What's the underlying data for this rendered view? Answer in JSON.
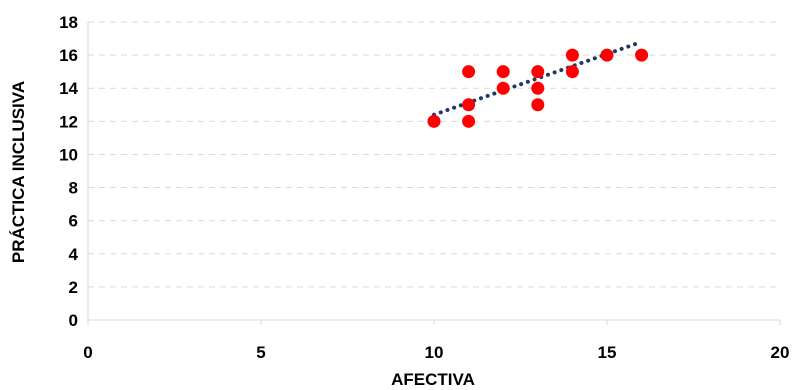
{
  "chart_data": {
    "type": "scatter",
    "title": "",
    "xlabel": "AFECTIVA",
    "ylabel": "PRÁCTICA INCLUSIVA",
    "xlim": [
      0,
      20
    ],
    "ylim": [
      0,
      18
    ],
    "xticks": [
      0,
      5,
      10,
      15,
      20
    ],
    "yticks": [
      0,
      2,
      4,
      6,
      8,
      10,
      12,
      14,
      16,
      18
    ],
    "grid": true,
    "legend": "none",
    "points": [
      {
        "x": 10,
        "y": 12
      },
      {
        "x": 11,
        "y": 15
      },
      {
        "x": 11,
        "y": 13
      },
      {
        "x": 11,
        "y": 12
      },
      {
        "x": 12,
        "y": 15
      },
      {
        "x": 12,
        "y": 14
      },
      {
        "x": 13,
        "y": 15
      },
      {
        "x": 13,
        "y": 14
      },
      {
        "x": 13,
        "y": 13
      },
      {
        "x": 14,
        "y": 16
      },
      {
        "x": 14,
        "y": 15
      },
      {
        "x": 15,
        "y": 16
      },
      {
        "x": 16,
        "y": 16
      }
    ],
    "trendline": {
      "type": "linear",
      "x_start": 10,
      "y_start": 12.4,
      "x_end": 16,
      "y_end": 16.8
    },
    "colors": {
      "points": "#ff0000",
      "trendline": "#1f3864"
    }
  }
}
